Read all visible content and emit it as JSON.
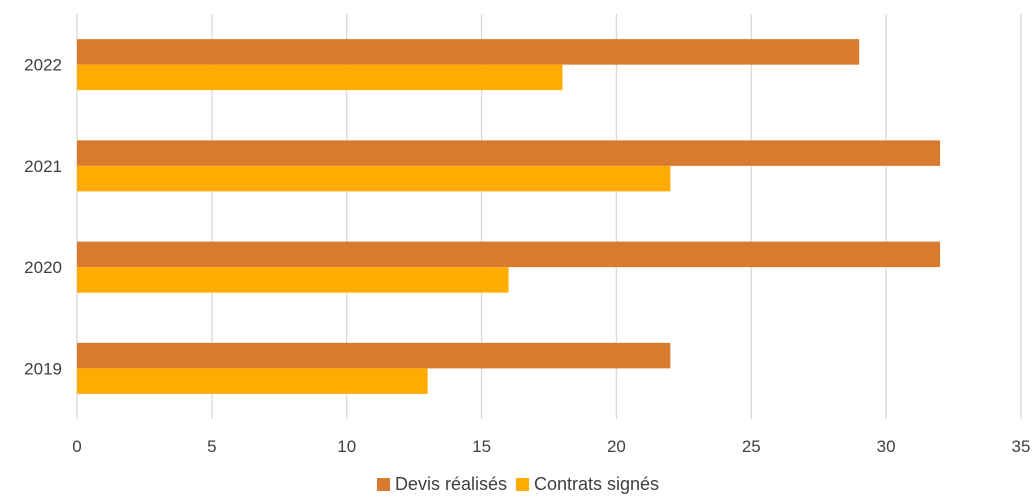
{
  "chart_data": {
    "type": "bar",
    "orientation": "horizontal",
    "categories": [
      "2022",
      "2021",
      "2020",
      "2019"
    ],
    "series": [
      {
        "name": "Devis réalisés",
        "color": "#D97B2F",
        "values": [
          29,
          32,
          32,
          22
        ]
      },
      {
        "name": "Contrats signés",
        "color": "#FFAB00",
        "values": [
          18,
          22,
          16,
          13
        ]
      }
    ],
    "xlim": [
      0,
      35
    ],
    "xticks": [
      0,
      5,
      10,
      15,
      20,
      25,
      30,
      35
    ],
    "grid": true,
    "legend": "bottom",
    "title": "",
    "xlabel": "",
    "ylabel": ""
  }
}
